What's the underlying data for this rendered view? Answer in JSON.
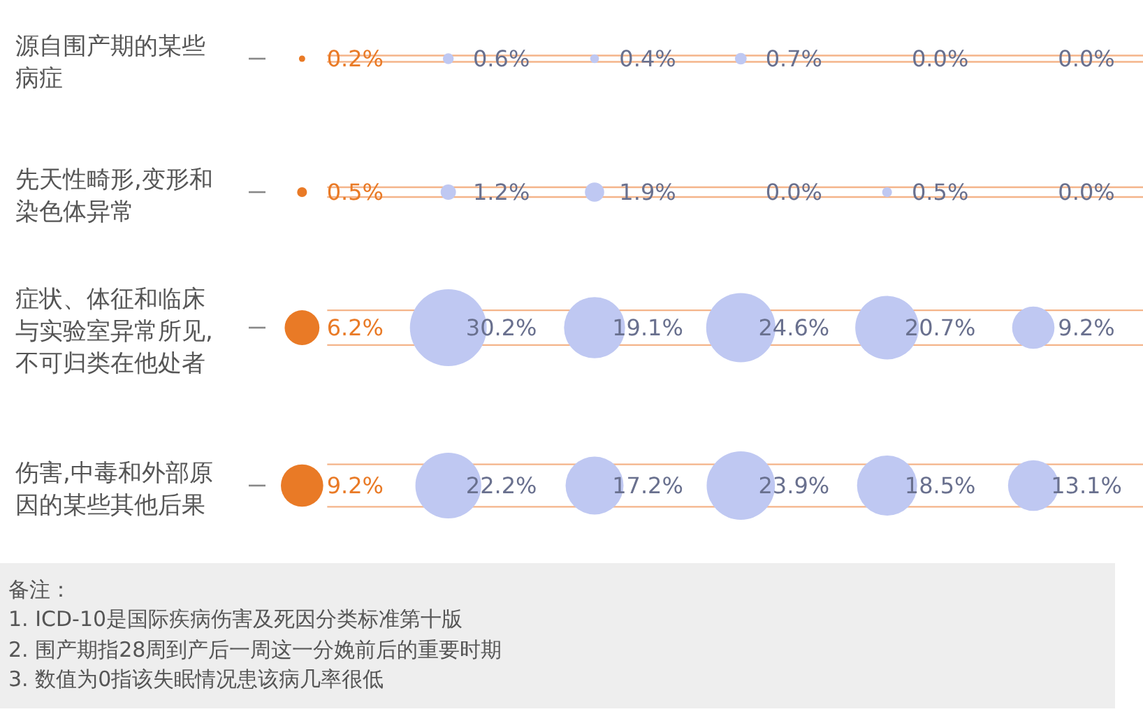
{
  "chart_data": [
    {
      "type": "other",
      "ylabel": "源自围产期的某些病症",
      "categories": [
        null,
        null,
        null,
        null,
        null,
        null
      ],
      "values": [
        0.2,
        0.6,
        0.4,
        0.7,
        0.0,
        0.0
      ],
      "value_labels": [
        "0.2%",
        "0.6%",
        "0.4%",
        "0.7%",
        "0.0%",
        "0.0%"
      ],
      "colors": [
        "#e97a26",
        "#bfc8f2",
        "#bfc8f2",
        "#bfc8f2",
        "#bfc8f2",
        "#bfc8f2"
      ]
    },
    {
      "type": "other",
      "ylabel": "先天性畸形,变形和染色体异常",
      "categories": [
        null,
        null,
        null,
        null,
        null,
        null
      ],
      "values": [
        0.5,
        1.2,
        1.9,
        0.0,
        0.5,
        0.0
      ],
      "value_labels": [
        "0.5%",
        "1.2%",
        "1.9%",
        "0.0%",
        "0.5%",
        "0.0%"
      ],
      "colors": [
        "#e97a26",
        "#bfc8f2",
        "#bfc8f2",
        "#bfc8f2",
        "#bfc8f2",
        "#bfc8f2"
      ]
    },
    {
      "type": "other",
      "ylabel": "症状、体征和临床与实验室异常所见,不可归类在他处者",
      "categories": [
        null,
        null,
        null,
        null,
        null,
        null
      ],
      "values": [
        6.2,
        30.2,
        19.1,
        24.6,
        20.7,
        9.2
      ],
      "value_labels": [
        "6.2%",
        "30.2%",
        "19.1%",
        "24.6%",
        "20.7%",
        "9.2%"
      ],
      "colors": [
        "#e97a26",
        "#bfc8f2",
        "#bfc8f2",
        "#bfc8f2",
        "#bfc8f2",
        "#bfc8f2"
      ]
    },
    {
      "type": "other",
      "ylabel": "伤害,中毒和外部原因的某些其他后果",
      "categories": [
        null,
        null,
        null,
        null,
        null,
        null
      ],
      "values": [
        9.2,
        22.2,
        17.2,
        23.9,
        18.5,
        13.1
      ],
      "value_labels": [
        "9.2%",
        "22.2%",
        "17.2%",
        "23.9%",
        "18.5%",
        "13.1%"
      ],
      "colors": [
        "#e97a26",
        "#bfc8f2",
        "#bfc8f2",
        "#bfc8f2",
        "#bfc8f2",
        "#bfc8f2"
      ],
      "annotations": [
        "备注：",
        "1. ICD-10是国际疾病伤害及死因分类标准第十版",
        "2. 围产期指28周到产后一周这一分娩前后的重要时期",
        "3. 数值为0指该失眠情况患该病几率很低"
      ]
    }
  ]
}
